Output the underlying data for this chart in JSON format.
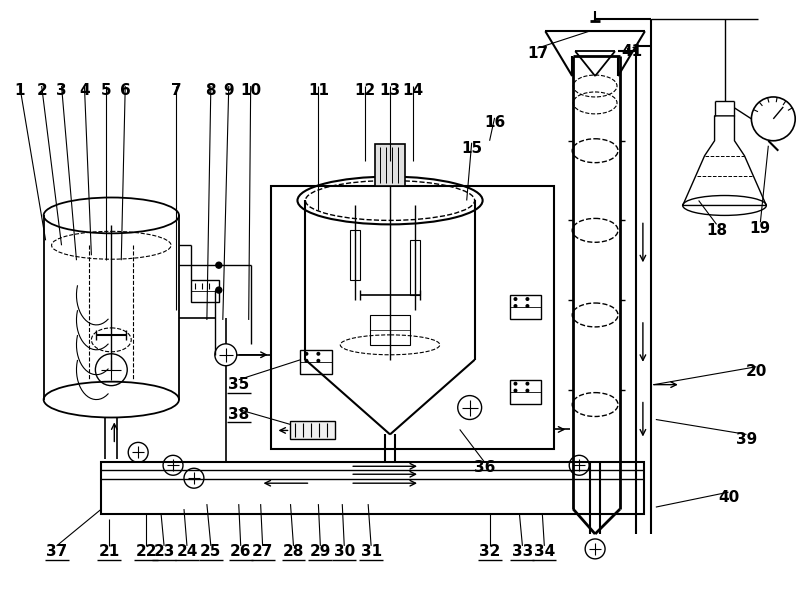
{
  "bg_color": "#ffffff",
  "line_color": "#000000",
  "figsize": [
    8.0,
    6.14
  ],
  "dpi": 100
}
